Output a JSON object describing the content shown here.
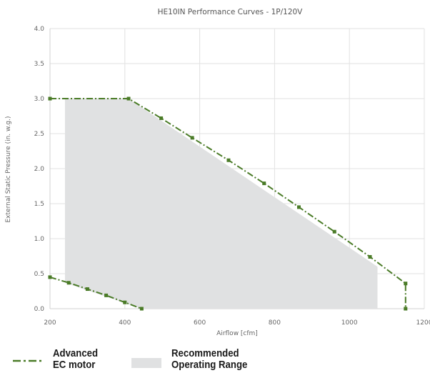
{
  "chart_data": {
    "type": "line",
    "title": "HE10IN Performance Curves - 1P/120V",
    "xlabel": "Airflow [cfm]",
    "ylabel": "External Static Pressure (in. w.g.)",
    "xlim": [
      200,
      1200
    ],
    "ylim": [
      0,
      4
    ],
    "x_ticks": [
      "200",
      "400",
      "600",
      "800",
      "1000",
      "1200"
    ],
    "y_ticks": [
      "0.0",
      "0.5",
      "1.0",
      "1.5",
      "2.0",
      "2.5",
      "3.0",
      "3.5",
      "4.0"
    ],
    "grid": true,
    "series": [
      {
        "name": "Advanced EC motor",
        "color": "#4a7b27",
        "style": "dash-dot",
        "x": [
          200,
          410,
          497,
          580,
          677,
          772,
          865,
          960,
          1055,
          1150,
          1150
        ],
        "y": [
          3.0,
          3.0,
          2.72,
          2.44,
          2.12,
          1.79,
          1.45,
          1.1,
          0.74,
          0.36,
          0.0
        ]
      },
      {
        "name": "Advanced EC motor",
        "color": "#4a7b27",
        "style": "dash-dot",
        "x": [
          200,
          250,
          300,
          350,
          400,
          445
        ],
        "y": [
          0.45,
          0.37,
          0.28,
          0.19,
          0.09,
          0.0
        ]
      }
    ],
    "shaded_region": {
      "name": "Recommended Operating Range",
      "color": "#e0e1e2",
      "x": [
        240,
        410,
        1075,
        1075,
        445,
        240
      ],
      "y": [
        3.0,
        3.0,
        0.6,
        0.0,
        0.0,
        0.37
      ]
    }
  },
  "legend": {
    "line_label": "Advanced\nEC motor",
    "range_label": "Recommended\nOperating Range"
  }
}
